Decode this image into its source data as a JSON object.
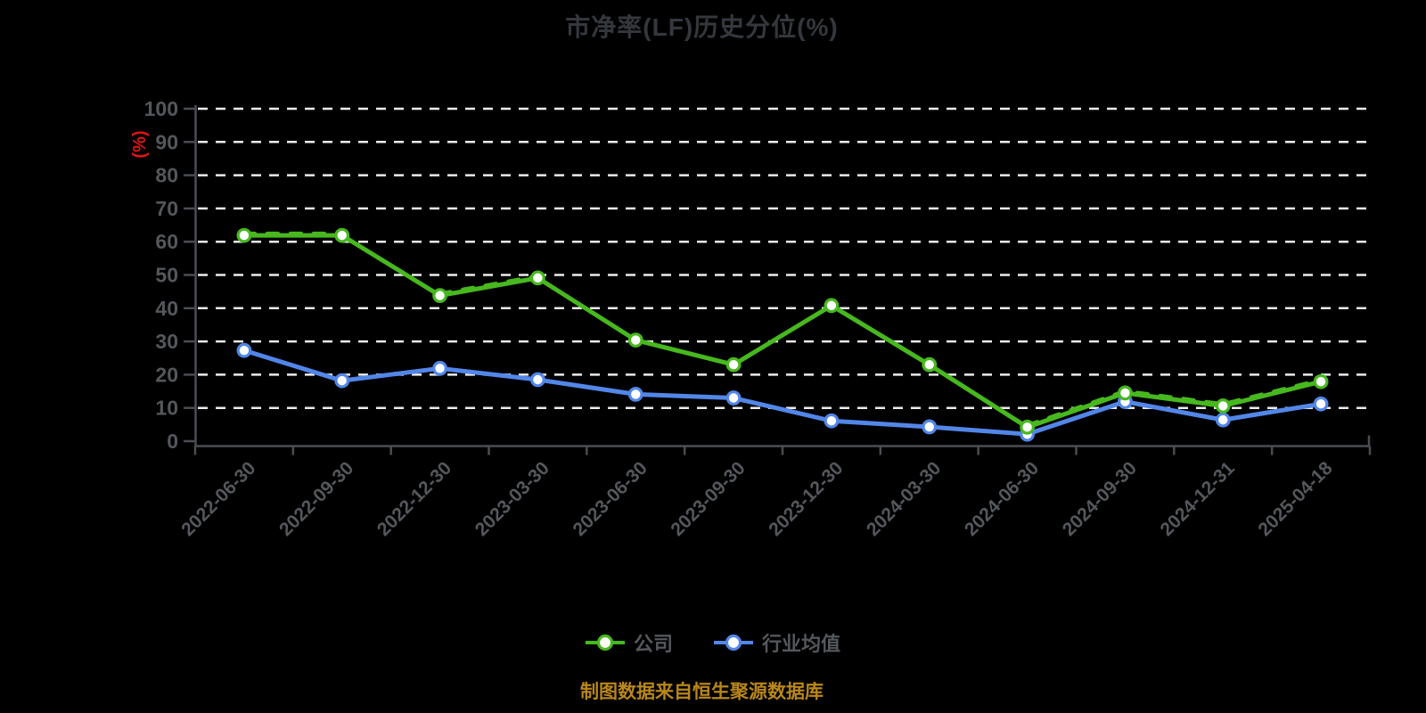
{
  "title": "市净率(LF)历史分位(%)",
  "y_axis_unit_label": "(%)",
  "footer": {
    "caption": "制图数据来自恒生聚源数据库"
  },
  "legend": {
    "items": [
      {
        "label": "公司",
        "color": "#47b81e"
      },
      {
        "label": "行业均值",
        "color": "#5286e8"
      }
    ]
  },
  "colors": {
    "background": "#000000",
    "title_text": "#34373c",
    "axis_line": "#4a4d52",
    "axis_tick_text": "#54575b",
    "grid_line": "#ececec",
    "unit_label_red": "#e01414",
    "company_green": "#47b81e",
    "industry_blue": "#5286e8",
    "marker_fill": "#ffffff",
    "caption_orange": "#b8861b"
  },
  "chart_data": {
    "type": "line",
    "title": "市净率(LF)历史分位(%)",
    "ylabel": "(%)",
    "ylim": [
      0,
      100
    ],
    "y_ticks": [
      0,
      10,
      20,
      30,
      40,
      50,
      60,
      70,
      80,
      90,
      100
    ],
    "grid": "horizontal-dashed-white",
    "legend_position": "bottom",
    "categories": [
      "2022-06-30",
      "2022-09-30",
      "2022-12-30",
      "2023-03-30",
      "2023-06-30",
      "2023-09-30",
      "2023-12-30",
      "2024-03-30",
      "2024-06-30",
      "2024-09-30",
      "2024-12-31",
      "2025-04-18"
    ],
    "series": [
      {
        "name": "公司",
        "color": "#47b81e",
        "line_style": "solid with partial dashed overlay",
        "marker": "circle-white-fill",
        "values": [
          61.9,
          61.9,
          43.8,
          49.1,
          30.4,
          23.0,
          40.8,
          23.0,
          4.2,
          14.5,
          10.6,
          17.9
        ]
      },
      {
        "name": "行业均值",
        "color": "#5286e8",
        "line_style": "solid",
        "marker": "circle-white-fill",
        "values": [
          27.3,
          18.2,
          21.9,
          18.5,
          14.1,
          13.0,
          6.1,
          4.3,
          2.1,
          11.9,
          6.4,
          11.2
        ]
      }
    ],
    "dash_overlay_segments": [
      [
        0,
        1
      ],
      [
        2,
        3
      ],
      [
        8,
        11
      ]
    ]
  }
}
